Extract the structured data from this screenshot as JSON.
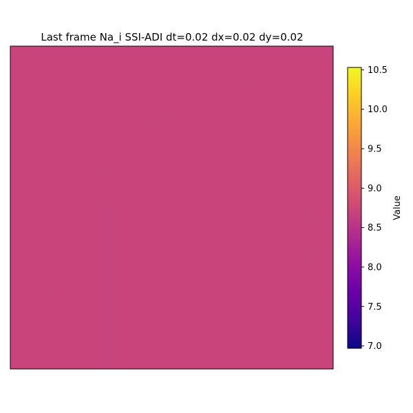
{
  "chart_data": {
    "type": "heatmap",
    "title": "Last frame Na_i SSI-ADI dt=0.02 dx=0.02 dy=0.02",
    "xlabel": "",
    "ylabel": "",
    "x_ticks_shown": false,
    "y_ticks_shown": false,
    "field_value_approx": 8.65,
    "field_color": "#c8447a",
    "colorbar": {
      "label": "Value",
      "colormap": "plasma",
      "vmin": 6.97,
      "vmax": 10.53,
      "ticks": [
        7.0,
        7.5,
        8.0,
        8.5,
        9.0,
        9.5,
        10.0,
        10.5
      ],
      "tick_labels": [
        "7.0",
        "7.5",
        "8.0",
        "8.5",
        "9.0",
        "9.5",
        "10.0",
        "10.5"
      ]
    }
  }
}
